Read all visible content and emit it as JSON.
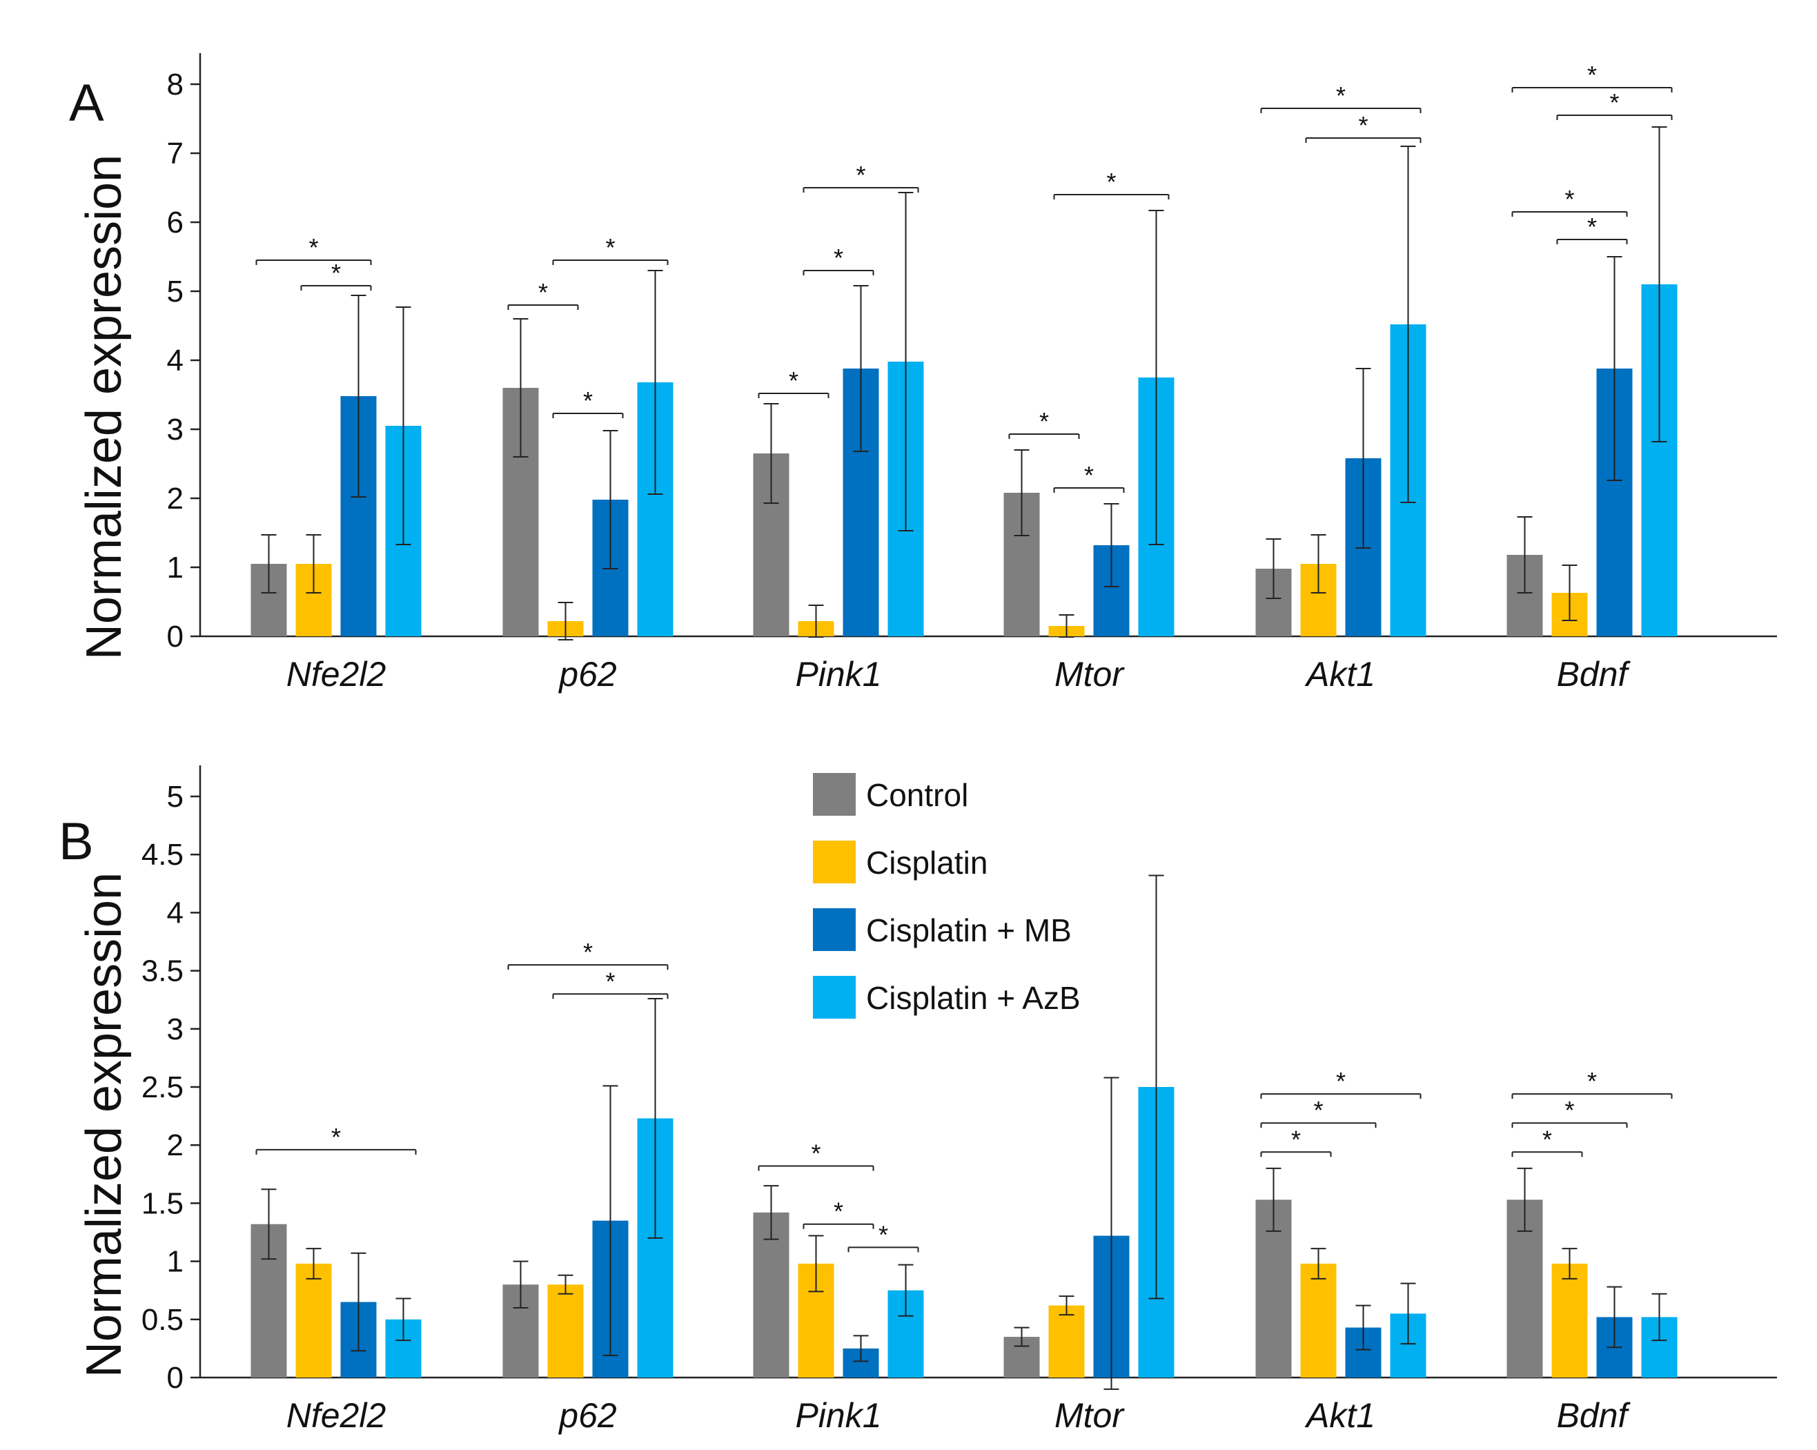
{
  "colors": {
    "Control": "#7f7f7f",
    "Cisplatin": "#ffc000",
    "Cisplatin + MB": "#0070c0",
    "Cisplatin + AzB": "#00b0f0"
  },
  "legend": [
    "Control",
    "Cisplatin",
    "Cisplatin + MB",
    "Cisplatin + AzB"
  ],
  "chart_data": [
    {
      "type": "bar",
      "panel": "A",
      "ylabel": "Normalized expression",
      "ylim": [
        0,
        8
      ],
      "yticks": [
        "0",
        "1",
        "2",
        "3",
        "4",
        "5",
        "6",
        "7",
        "8"
      ],
      "categories": [
        "Nfe2l2",
        "p62",
        "Pink1",
        "Mtor",
        "Akt1",
        "Bdnf"
      ],
      "series": [
        {
          "name": "Control",
          "values": [
            1.05,
            3.6,
            2.65,
            2.08,
            0.98,
            1.18
          ],
          "errors": [
            0.42,
            1.0,
            0.72,
            0.62,
            0.43,
            0.55
          ]
        },
        {
          "name": "Cisplatin",
          "values": [
            1.05,
            0.22,
            0.22,
            0.15,
            1.05,
            0.63
          ],
          "errors": [
            0.42,
            0.27,
            0.23,
            0.16,
            0.42,
            0.4
          ]
        },
        {
          "name": "Cisplatin + MB",
          "values": [
            3.48,
            1.98,
            3.88,
            1.32,
            2.58,
            3.88
          ],
          "errors": [
            1.46,
            1.0,
            1.2,
            0.6,
            1.3,
            1.62
          ]
        },
        {
          "name": "Cisplatin + AzB",
          "values": [
            3.05,
            3.68,
            3.98,
            3.75,
            4.52,
            5.1
          ],
          "errors": [
            1.72,
            1.62,
            2.45,
            2.42,
            2.58,
            2.28
          ]
        }
      ],
      "significance": [
        {
          "cat": 0,
          "from": 0,
          "to": 2,
          "y": 5.45,
          "label": "*"
        },
        {
          "cat": 0,
          "from": 1,
          "to": 2,
          "y": 5.08,
          "label": "*"
        },
        {
          "cat": 1,
          "from": 0,
          "to": 1,
          "y": 4.8,
          "label": "*"
        },
        {
          "cat": 1,
          "from": 1,
          "to": 2,
          "y": 3.23,
          "label": "*"
        },
        {
          "cat": 1,
          "from": 1,
          "to": 3,
          "y": 5.45,
          "label": "*"
        },
        {
          "cat": 2,
          "from": 0,
          "to": 1,
          "y": 3.52,
          "label": "*"
        },
        {
          "cat": 2,
          "from": 1,
          "to": 2,
          "y": 5.3,
          "label": "*"
        },
        {
          "cat": 2,
          "from": 1,
          "to": 3,
          "y": 6.5,
          "label": "*"
        },
        {
          "cat": 3,
          "from": 0,
          "to": 1,
          "y": 2.93,
          "label": "*"
        },
        {
          "cat": 3,
          "from": 1,
          "to": 2,
          "y": 2.15,
          "label": "*"
        },
        {
          "cat": 3,
          "from": 1,
          "to": 3,
          "y": 6.4,
          "label": "*"
        },
        {
          "cat": 4,
          "from": 0,
          "to": 3,
          "y": 7.65,
          "label": "*"
        },
        {
          "cat": 4,
          "from": 1,
          "to": 3,
          "y": 7.22,
          "label": "*"
        },
        {
          "cat": 5,
          "from": 0,
          "to": 2,
          "y": 6.15,
          "label": "*"
        },
        {
          "cat": 5,
          "from": 1,
          "to": 2,
          "y": 5.75,
          "label": "*"
        },
        {
          "cat": 5,
          "from": 0,
          "to": 3,
          "y": 7.95,
          "label": "*"
        },
        {
          "cat": 5,
          "from": 1,
          "to": 3,
          "y": 7.55,
          "label": "*"
        }
      ]
    },
    {
      "type": "bar",
      "panel": "B",
      "ylabel": "Normalized expression",
      "ylim": [
        0,
        5
      ],
      "yticks": [
        "0",
        "0.5",
        "1",
        "1.5",
        "2",
        "2.5",
        "3",
        "3.5",
        "4",
        "4.5",
        "5"
      ],
      "categories": [
        "Nfe2l2",
        "p62",
        "Pink1",
        "Mtor",
        "Akt1",
        "Bdnf"
      ],
      "series": [
        {
          "name": "Control",
          "values": [
            1.32,
            0.8,
            1.42,
            0.35,
            1.53,
            1.53
          ],
          "errors": [
            0.3,
            0.2,
            0.23,
            0.08,
            0.27,
            0.27
          ]
        },
        {
          "name": "Cisplatin",
          "values": [
            0.98,
            0.8,
            0.98,
            0.62,
            0.98,
            0.98
          ],
          "errors": [
            0.13,
            0.08,
            0.24,
            0.08,
            0.13,
            0.13
          ]
        },
        {
          "name": "Cisplatin + MB",
          "values": [
            0.65,
            1.35,
            0.25,
            1.22,
            0.43,
            0.52
          ],
          "errors": [
            0.42,
            1.16,
            0.11,
            1.36,
            0.19,
            0.26
          ]
        },
        {
          "name": "Cisplatin + AzB",
          "values": [
            0.5,
            2.23,
            0.75,
            2.5,
            0.55,
            0.52
          ],
          "errors": [
            0.18,
            1.03,
            0.22,
            1.82,
            0.26,
            0.2
          ]
        }
      ],
      "significance": [
        {
          "cat": 0,
          "from": 0,
          "to": 3,
          "y": 1.96,
          "label": "*"
        },
        {
          "cat": 1,
          "from": 0,
          "to": 3,
          "y": 3.55,
          "label": "*"
        },
        {
          "cat": 1,
          "from": 1,
          "to": 3,
          "y": 3.3,
          "label": "*"
        },
        {
          "cat": 2,
          "from": 0,
          "to": 2,
          "y": 1.82,
          "label": "*"
        },
        {
          "cat": 2,
          "from": 1,
          "to": 2,
          "y": 1.32,
          "label": "*"
        },
        {
          "cat": 2,
          "from": 2,
          "to": 3,
          "y": 1.12,
          "label": "*"
        },
        {
          "cat": 4,
          "from": 0,
          "to": 1,
          "y": 1.94,
          "label": "*"
        },
        {
          "cat": 4,
          "from": 0,
          "to": 2,
          "y": 2.19,
          "label": "*"
        },
        {
          "cat": 4,
          "from": 0,
          "to": 3,
          "y": 2.44,
          "label": "*"
        },
        {
          "cat": 5,
          "from": 0,
          "to": 1,
          "y": 1.94,
          "label": "*"
        },
        {
          "cat": 5,
          "from": 0,
          "to": 2,
          "y": 2.19,
          "label": "*"
        },
        {
          "cat": 5,
          "from": 0,
          "to": 3,
          "y": 2.44,
          "label": "*"
        }
      ]
    }
  ]
}
